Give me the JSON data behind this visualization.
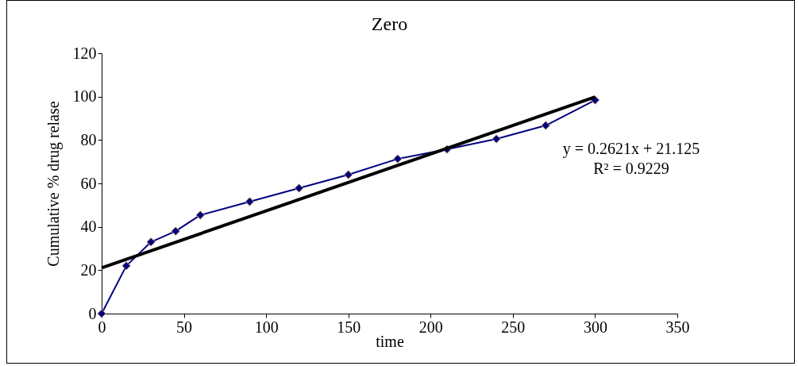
{
  "chart_data": {
    "type": "line",
    "title": "Zero",
    "xlabel": "time",
    "ylabel": "Cumulative % drug relase",
    "x": [
      0,
      15,
      30,
      45,
      60,
      90,
      120,
      150,
      180,
      210,
      240,
      270,
      300
    ],
    "series": [
      {
        "color": "#000080",
        "values": [
          0,
          22,
          33,
          38,
          45.4,
          51.6,
          57.8,
          64,
          71.3,
          75.7,
          80.5,
          86.7,
          98.4
        ]
      },
      {
        "type": "line",
        "color": "#000000",
        "marker": "none",
        "x": [
          0,
          300
        ],
        "values": [
          21.1,
          99.8
        ]
      }
    ],
    "annotations": [
      "y = 0.2621x + 21.125",
      "R² = 0.9229"
    ],
    "xlim": [
      0,
      350
    ],
    "xticks": [
      0,
      50,
      100,
      150,
      200,
      250,
      300,
      350
    ],
    "ylim": [
      0,
      120
    ],
    "yticks": [
      0,
      20,
      40,
      60,
      80,
      100,
      120
    ],
    "grid": false,
    "marker": "diamond"
  }
}
